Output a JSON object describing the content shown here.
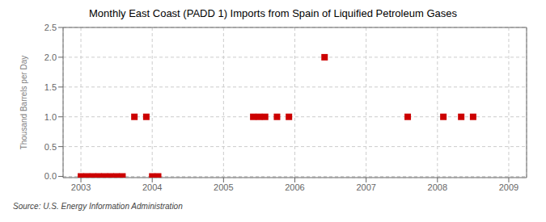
{
  "chart_data": {
    "type": "scatter",
    "title": "Monthly East Coast (PADD 1) Imports from Spain of Liquified Petroleum Gases",
    "ylabel": "Thousand Barrels per Day",
    "annotations": [
      "Source: U.S. Energy Information Administration"
    ],
    "x": [
      2003.0,
      2003.083,
      2003.167,
      2003.25,
      2003.333,
      2003.417,
      2003.5,
      2003.583,
      2003.75,
      2003.917,
      2004.0,
      2004.083,
      2005.417,
      2005.5,
      2005.583,
      2005.75,
      2005.917,
      2006.417,
      2007.583,
      2008.083,
      2008.333,
      2008.5
    ],
    "values": [
      0.0,
      0.0,
      0.0,
      0.0,
      0.0,
      0.0,
      0.0,
      0.0,
      1.0,
      1.0,
      0.0,
      0.0,
      1.0,
      1.0,
      1.0,
      1.0,
      1.0,
      2.0,
      1.0,
      1.0,
      1.0,
      1.0
    ],
    "color": "#cc0000",
    "marker": "square",
    "grid": true,
    "xlim": [
      2002.75,
      2009.25
    ],
    "ylim": [
      -0.02,
      2.5
    ],
    "xticks": [
      2003,
      2004,
      2005,
      2006,
      2007,
      2008,
      2009
    ],
    "yticks": [
      {
        "value": 0.0,
        "label": "0.0"
      },
      0.5,
      {
        "value": 1.0,
        "label": "1.0"
      },
      1.5,
      {
        "value": 2.0,
        "label": "2.0"
      },
      2.5
    ]
  }
}
